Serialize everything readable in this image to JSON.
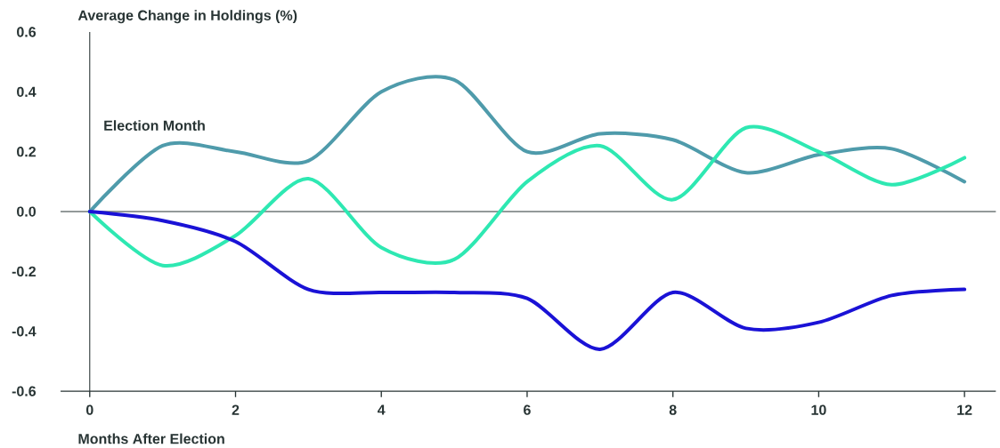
{
  "chart_data": {
    "type": "line",
    "ylabel": "Average Change in Holdings (%)",
    "xlabel": "Months After Election",
    "x": [
      0,
      1,
      2,
      3,
      4,
      5,
      6,
      7,
      8,
      9,
      10,
      11,
      12
    ],
    "series": [
      {
        "color": "#4f9bab",
        "values": [
          0,
          0.22,
          0.2,
          0.17,
          0.4,
          0.44,
          0.2,
          0.26,
          0.24,
          0.13,
          0.19,
          0.21,
          0.1
        ]
      },
      {
        "color": "#2ee8b2",
        "values": [
          0,
          -0.18,
          -0.08,
          0.11,
          -0.12,
          -0.16,
          0.1,
          0.22,
          0.04,
          0.28,
          0.2,
          0.09,
          0.18
        ]
      },
      {
        "color": "#1a12d6",
        "values": [
          0,
          -0.03,
          -0.1,
          -0.26,
          -0.27,
          -0.27,
          -0.29,
          -0.46,
          -0.27,
          -0.39,
          -0.37,
          -0.28,
          -0.26
        ]
      }
    ],
    "xlim": [
      -0.4,
      12.43
    ],
    "xticks": [
      0,
      2,
      4,
      6,
      8,
      10,
      12
    ],
    "ylim": [
      -0.6,
      0.6
    ],
    "yticks": [
      {
        "value": -0.6,
        "label": "-0.6"
      },
      {
        "value": -0.4,
        "label": "-0.4"
      },
      {
        "value": -0.2,
        "label": "-0.2"
      },
      {
        "value": 0,
        "label": "0.0"
      },
      {
        "value": 0.2,
        "label": "0.2"
      },
      {
        "value": 0.4,
        "label": "0.4"
      },
      {
        "value": 0.6,
        "label": "0.6"
      }
    ],
    "ref_lines": [
      {
        "axis": "x",
        "value": 0,
        "label": "Election Month"
      },
      {
        "axis": "y",
        "value": 0
      }
    ],
    "grid": false,
    "marker": "none",
    "line_style": "solid"
  }
}
